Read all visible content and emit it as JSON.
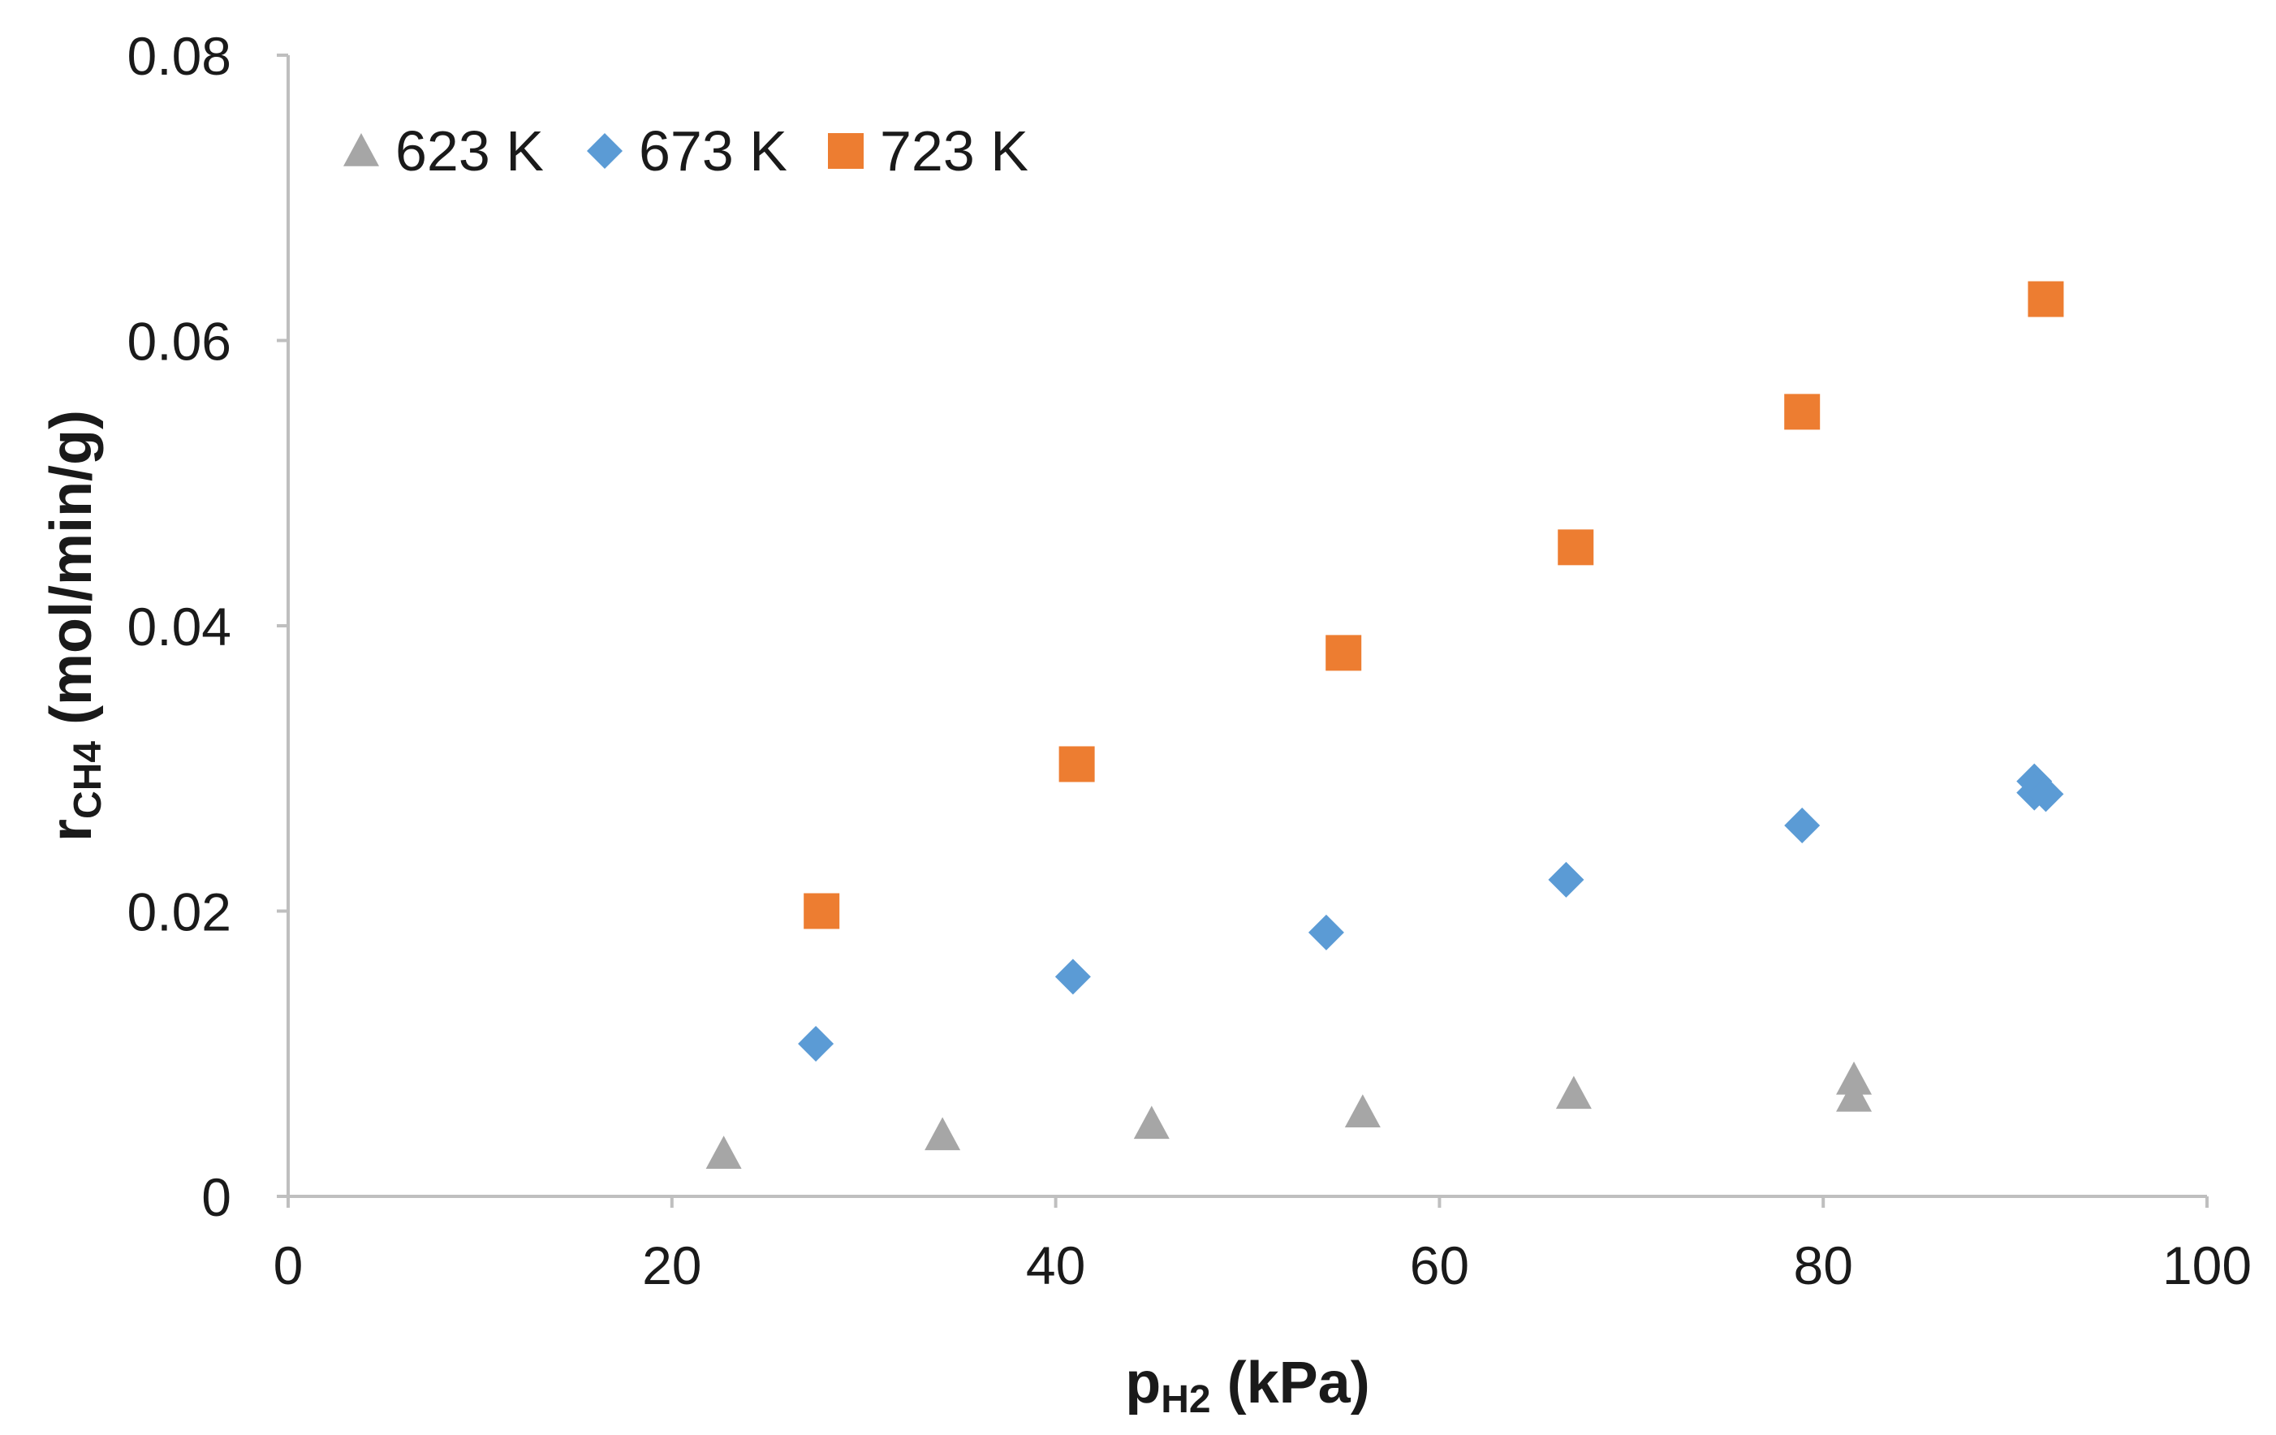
{
  "chart_data": {
    "type": "scatter",
    "title": "",
    "xlabel": {
      "main": "p",
      "sub": "H2",
      "unit": " (kPa)"
    },
    "ylabel": {
      "main": "r",
      "sub": "CH4",
      "unit": " (mol/min/g)"
    },
    "xlim": [
      0,
      100
    ],
    "ylim": [
      0,
      0.08
    ],
    "xticks": [
      0,
      20,
      40,
      60,
      80,
      100
    ],
    "xtick_labels": [
      "0",
      "20",
      "40",
      "60",
      "80",
      "100"
    ],
    "yticks": [
      0,
      0.02,
      0.04,
      0.06,
      0.08
    ],
    "ytick_labels": [
      "0",
      "0.02",
      "0.04",
      "0.06",
      "0.08"
    ],
    "grid": false,
    "legend_position": "top-left",
    "series": [
      {
        "name": "623 K",
        "marker": "triangle",
        "color": "#a6a6a6",
        "points": [
          [
            22.7,
            0.003
          ],
          [
            34.1,
            0.0043
          ],
          [
            45.0,
            0.0051
          ],
          [
            56.0,
            0.0059
          ],
          [
            67.0,
            0.0072
          ],
          [
            81.6,
            0.007
          ],
          [
            81.6,
            0.0082
          ]
        ]
      },
      {
        "name": "673 K",
        "marker": "diamond",
        "color": "#5b9bd5",
        "points": [
          [
            27.5,
            0.0107
          ],
          [
            40.9,
            0.0154
          ],
          [
            54.1,
            0.0185
          ],
          [
            66.6,
            0.0222
          ],
          [
            78.9,
            0.026
          ],
          [
            91.0,
            0.0283
          ],
          [
            91.0,
            0.0291
          ],
          [
            91.6,
            0.0282
          ]
        ]
      },
      {
        "name": "723 K",
        "marker": "square",
        "color": "#ed7d31",
        "points": [
          [
            27.8,
            0.02
          ],
          [
            41.1,
            0.0303
          ],
          [
            55.0,
            0.0381
          ],
          [
            67.1,
            0.0455
          ],
          [
            78.9,
            0.055
          ],
          [
            91.6,
            0.0629
          ]
        ]
      }
    ]
  }
}
